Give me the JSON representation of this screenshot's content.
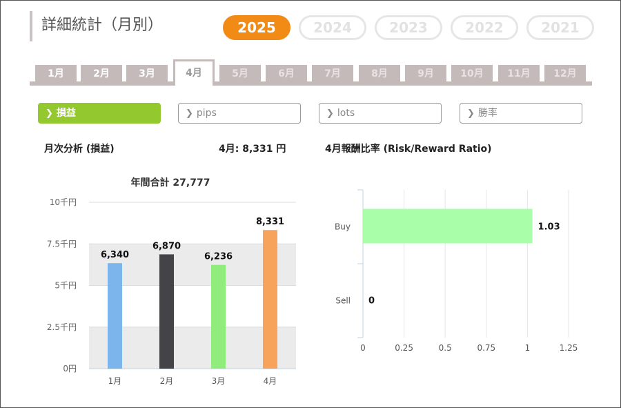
{
  "page": {
    "title": "詳細統計（月別）"
  },
  "years": [
    {
      "label": "2025",
      "active": true
    },
    {
      "label": "2024",
      "active": false
    },
    {
      "label": "2023",
      "active": false
    },
    {
      "label": "2022",
      "active": false
    },
    {
      "label": "2021",
      "active": false
    }
  ],
  "months": [
    {
      "label": "1月",
      "state": "normal"
    },
    {
      "label": "2月",
      "state": "normal"
    },
    {
      "label": "3月",
      "state": "normal"
    },
    {
      "label": "4月",
      "state": "active"
    },
    {
      "label": "5月",
      "state": "dim"
    },
    {
      "label": "6月",
      "state": "dim"
    },
    {
      "label": "7月",
      "state": "dim"
    },
    {
      "label": "8月",
      "state": "dim"
    },
    {
      "label": "9月",
      "state": "dim"
    },
    {
      "label": "10月",
      "state": "dim"
    },
    {
      "label": "11月",
      "state": "dim"
    },
    {
      "label": "12月",
      "state": "dim"
    }
  ],
  "metrics": [
    {
      "label": "損益",
      "active": true
    },
    {
      "label": "pips",
      "active": false
    },
    {
      "label": "lots",
      "active": false
    },
    {
      "label": "勝率",
      "active": false
    }
  ],
  "sections": {
    "left_title": "月次分析 (損益)",
    "month_summary": "4月:  8,331 円",
    "right_title": "4月報酬比率 (Risk/Reward Ratio)"
  },
  "colors": {
    "accent": "#f28a16",
    "metric_active": "#93c92f",
    "tab": "#c5baba"
  },
  "chart_data": [
    {
      "type": "bar",
      "title": "年間合計 27,777",
      "categories": [
        "1月",
        "2月",
        "3月",
        "4月"
      ],
      "values": [
        6340,
        6870,
        6236,
        8331
      ],
      "value_labels": [
        "6,340",
        "6,870",
        "6,236",
        "8,331"
      ],
      "colors": [
        "#7cb5ec",
        "#434348",
        "#90ed7d",
        "#f7a35c"
      ],
      "yticks": [
        0,
        2500,
        5000,
        7500,
        10000
      ],
      "ytick_labels": [
        "0円",
        "2.5千円",
        "5千円",
        "7.5千円",
        "10千円"
      ],
      "ylim": [
        0,
        10000
      ],
      "orientation": "vertical"
    },
    {
      "type": "bar",
      "orientation": "horizontal",
      "categories": [
        "Buy",
        "Sell"
      ],
      "values": [
        1.03,
        0
      ],
      "value_labels": [
        "1.03",
        "0"
      ],
      "color": "#a9ffa9",
      "xticks": [
        0,
        0.25,
        0.5,
        0.75,
        1,
        1.25
      ],
      "xtick_labels": [
        "0",
        "0.25",
        "0.5",
        "0.75",
        "1",
        "1.25"
      ],
      "xlim": [
        0,
        1.25
      ]
    }
  ]
}
